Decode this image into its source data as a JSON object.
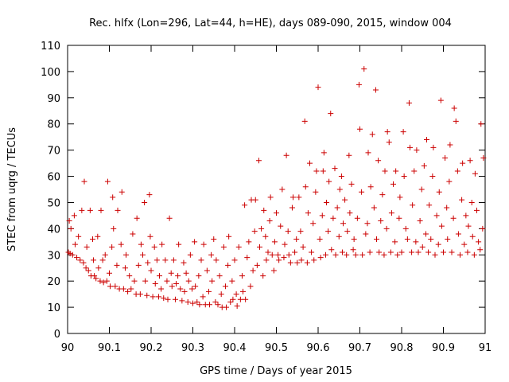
{
  "chart_data": {
    "type": "scatter",
    "title": "Rec. hlfx (Lon=296, Lat=44, h=HE), days 089-090, 2015, window 004",
    "xlabel": "GPS time / Days of year 2015",
    "ylabel": "STEC from uqrg / TECUs",
    "xlim": [
      90,
      91
    ],
    "ylim": [
      0,
      110
    ],
    "x_ticks": [
      90,
      90.1,
      90.2,
      90.3,
      90.4,
      90.5,
      90.6,
      90.7,
      90.8,
      90.9,
      91
    ],
    "x_tick_labels": [
      "90",
      "90.1",
      "90.2",
      "90.3",
      "90.4",
      "90.5",
      "90.6",
      "90.7",
      "90.8",
      "90.9",
      "91"
    ],
    "y_ticks": [
      0,
      10,
      20,
      30,
      40,
      50,
      60,
      70,
      80,
      90,
      100,
      110
    ],
    "y_tick_labels": [
      "0",
      "10",
      "20",
      "30",
      "40",
      "50",
      "60",
      "70",
      "80",
      "90",
      "100",
      "110"
    ],
    "marker": "plus",
    "color": "#cc0000",
    "grid": false,
    "series": [
      {
        "points": [
          [
            90.002,
            31
          ],
          [
            90.004,
            43
          ],
          [
            90.006,
            30.5
          ],
          [
            90.008,
            40
          ],
          [
            90.012,
            30
          ],
          [
            90.016,
            45
          ],
          [
            90.018,
            34
          ],
          [
            90.022,
            29
          ],
          [
            90.026,
            37
          ],
          [
            90.03,
            28
          ],
          [
            90.034,
            47
          ],
          [
            90.038,
            27
          ],
          [
            90.04,
            58
          ],
          [
            90.044,
            25
          ],
          [
            90.046,
            33
          ],
          [
            90.05,
            24
          ],
          [
            90.054,
            47
          ],
          [
            90.056,
            22
          ],
          [
            90.06,
            36
          ],
          [
            90.062,
            28
          ],
          [
            90.064,
            22
          ],
          [
            90.068,
            21
          ],
          [
            90.072,
            37
          ],
          [
            90.074,
            25
          ],
          [
            90.078,
            20
          ],
          [
            90.08,
            47
          ],
          [
            90.084,
            28
          ],
          [
            90.086,
            19.5
          ],
          [
            90.09,
            30
          ],
          [
            90.094,
            20
          ],
          [
            90.096,
            58
          ],
          [
            90.1,
            23
          ],
          [
            90.102,
            18
          ],
          [
            90.106,
            33
          ],
          [
            90.108,
            52
          ],
          [
            90.11,
            40
          ],
          [
            90.114,
            18
          ],
          [
            90.118,
            26
          ],
          [
            90.12,
            47
          ],
          [
            90.124,
            17
          ],
          [
            90.128,
            34
          ],
          [
            90.13,
            54
          ],
          [
            90.134,
            17
          ],
          [
            90.138,
            25
          ],
          [
            90.14,
            30
          ],
          [
            90.144,
            16
          ],
          [
            90.148,
            22
          ],
          [
            90.152,
            17
          ],
          [
            90.156,
            38
          ],
          [
            90.16,
            20
          ],
          [
            90.164,
            15
          ],
          [
            90.166,
            44
          ],
          [
            90.17,
            26
          ],
          [
            90.174,
            15
          ],
          [
            90.176,
            34
          ],
          [
            90.18,
            30
          ],
          [
            90.184,
            50
          ],
          [
            90.186,
            20
          ],
          [
            90.19,
            14.5
          ],
          [
            90.192,
            27
          ],
          [
            90.196,
            53
          ],
          [
            90.198,
            37
          ],
          [
            90.2,
            24
          ],
          [
            90.204,
            14
          ],
          [
            90.208,
            33
          ],
          [
            90.21,
            19
          ],
          [
            90.214,
            28
          ],
          [
            90.218,
            14
          ],
          [
            90.22,
            22
          ],
          [
            90.224,
            17
          ],
          [
            90.226,
            34
          ],
          [
            90.23,
            13.5
          ],
          [
            90.234,
            28
          ],
          [
            90.238,
            20
          ],
          [
            90.24,
            13
          ],
          [
            90.244,
            44
          ],
          [
            90.248,
            23
          ],
          [
            90.25,
            18
          ],
          [
            90.254,
            28
          ],
          [
            90.258,
            13
          ],
          [
            90.26,
            19
          ],
          [
            90.264,
            22
          ],
          [
            90.266,
            34
          ],
          [
            90.27,
            17
          ],
          [
            90.274,
            12.5
          ],
          [
            90.278,
            27
          ],
          [
            90.28,
            16
          ],
          [
            90.284,
            23
          ],
          [
            90.288,
            12
          ],
          [
            90.29,
            20
          ],
          [
            90.294,
            30
          ],
          [
            90.298,
            17
          ],
          [
            90.3,
            11.5
          ],
          [
            90.304,
            35
          ],
          [
            90.306,
            18
          ],
          [
            90.31,
            12
          ],
          [
            90.314,
            22
          ],
          [
            90.316,
            11
          ],
          [
            90.32,
            28
          ],
          [
            90.324,
            14
          ],
          [
            90.326,
            34
          ],
          [
            90.33,
            11
          ],
          [
            90.334,
            24
          ],
          [
            90.338,
            16
          ],
          [
            90.34,
            11
          ],
          [
            90.344,
            30
          ],
          [
            90.346,
            20
          ],
          [
            90.35,
            36
          ],
          [
            90.354,
            12
          ],
          [
            90.356,
            28
          ],
          [
            90.36,
            11
          ],
          [
            90.364,
            22
          ],
          [
            90.368,
            15
          ],
          [
            90.37,
            10
          ],
          [
            90.374,
            33
          ],
          [
            90.378,
            18
          ],
          [
            90.38,
            10
          ],
          [
            90.384,
            26
          ],
          [
            90.386,
            37
          ],
          [
            90.39,
            12
          ],
          [
            90.394,
            20
          ],
          [
            90.396,
            13
          ],
          [
            90.4,
            28
          ],
          [
            90.404,
            15
          ],
          [
            90.406,
            10.5
          ],
          [
            90.41,
            33
          ],
          [
            90.414,
            13
          ],
          [
            90.418,
            22
          ],
          [
            90.42,
            16
          ],
          [
            90.424,
            49
          ],
          [
            90.426,
            13
          ],
          [
            90.43,
            29
          ],
          [
            90.434,
            35
          ],
          [
            90.438,
            18
          ],
          [
            90.44,
            51
          ],
          [
            90.444,
            24
          ],
          [
            90.448,
            39
          ],
          [
            90.45,
            51
          ],
          [
            90.454,
            26
          ],
          [
            90.458,
            66
          ],
          [
            90.46,
            33
          ],
          [
            90.464,
            40
          ],
          [
            90.468,
            22
          ],
          [
            90.47,
            47
          ],
          [
            90.474,
            37
          ],
          [
            90.476,
            28
          ],
          [
            90.48,
            31
          ],
          [
            90.484,
            43
          ],
          [
            90.486,
            52
          ],
          [
            90.49,
            30
          ],
          [
            90.494,
            24
          ],
          [
            90.496,
            35
          ],
          [
            90.5,
            46
          ],
          [
            90.504,
            30
          ],
          [
            90.506,
            28
          ],
          [
            90.51,
            41
          ],
          [
            90.514,
            55
          ],
          [
            90.518,
            29
          ],
          [
            90.52,
            34
          ],
          [
            90.524,
            68
          ],
          [
            90.528,
            39
          ],
          [
            90.53,
            30
          ],
          [
            90.534,
            27
          ],
          [
            90.538,
            48
          ],
          [
            90.54,
            52
          ],
          [
            90.544,
            31
          ],
          [
            90.548,
            36
          ],
          [
            90.55,
            27
          ],
          [
            90.554,
            52
          ],
          [
            90.558,
            39
          ],
          [
            90.56,
            28
          ],
          [
            90.564,
            33
          ],
          [
            90.568,
            81
          ],
          [
            90.57,
            56
          ],
          [
            90.574,
            27
          ],
          [
            90.576,
            46
          ],
          [
            90.58,
            65
          ],
          [
            90.584,
            31
          ],
          [
            90.588,
            42
          ],
          [
            90.59,
            28
          ],
          [
            90.594,
            54
          ],
          [
            90.596,
            62
          ],
          [
            90.6,
            94
          ],
          [
            90.604,
            36
          ],
          [
            90.606,
            29
          ],
          [
            90.61,
            45
          ],
          [
            90.612,
            62
          ],
          [
            90.614,
            69
          ],
          [
            90.618,
            30
          ],
          [
            90.62,
            50
          ],
          [
            90.624,
            39
          ],
          [
            90.626,
            58
          ],
          [
            90.63,
            84
          ],
          [
            90.632,
            32
          ],
          [
            90.636,
            44
          ],
          [
            90.64,
            63
          ],
          [
            90.642,
            30
          ],
          [
            90.646,
            48
          ],
          [
            90.65,
            37
          ],
          [
            90.652,
            55
          ],
          [
            90.656,
            60
          ],
          [
            90.658,
            31
          ],
          [
            90.66,
            42
          ],
          [
            90.664,
            51
          ],
          [
            90.668,
            30
          ],
          [
            90.67,
            39
          ],
          [
            90.674,
            68
          ],
          [
            90.676,
            46
          ],
          [
            90.68,
            57
          ],
          [
            90.684,
            32
          ],
          [
            90.686,
            36
          ],
          [
            90.69,
            30
          ],
          [
            90.694,
            44
          ],
          [
            90.698,
            95
          ],
          [
            90.7,
            78
          ],
          [
            90.704,
            54
          ],
          [
            90.706,
            30
          ],
          [
            90.71,
            101
          ],
          [
            90.714,
            38
          ],
          [
            90.718,
            42
          ],
          [
            90.72,
            69
          ],
          [
            90.724,
            31
          ],
          [
            90.726,
            56
          ],
          [
            90.73,
            76
          ],
          [
            90.734,
            48
          ],
          [
            90.738,
            93
          ],
          [
            90.74,
            36
          ],
          [
            90.744,
            66
          ],
          [
            90.746,
            31
          ],
          [
            90.75,
            43
          ],
          [
            90.754,
            53
          ],
          [
            90.758,
            30
          ],
          [
            90.76,
            62
          ],
          [
            90.764,
            40
          ],
          [
            90.766,
            77
          ],
          [
            90.77,
            73
          ],
          [
            90.774,
            31
          ],
          [
            90.776,
            46
          ],
          [
            90.78,
            57
          ],
          [
            90.784,
            35
          ],
          [
            90.786,
            62
          ],
          [
            90.79,
            30
          ],
          [
            90.794,
            44
          ],
          [
            90.796,
            52
          ],
          [
            90.8,
            31
          ],
          [
            90.804,
            77
          ],
          [
            90.806,
            60
          ],
          [
            90.81,
            40
          ],
          [
            90.814,
            36
          ],
          [
            90.818,
            88
          ],
          [
            90.82,
            71
          ],
          [
            90.824,
            31
          ],
          [
            90.826,
            49
          ],
          [
            90.83,
            62
          ],
          [
            90.834,
            35
          ],
          [
            90.836,
            70
          ],
          [
            90.84,
            31
          ],
          [
            90.844,
            43
          ],
          [
            90.848,
            55
          ],
          [
            90.85,
            33
          ],
          [
            90.854,
            64
          ],
          [
            90.858,
            38
          ],
          [
            90.86,
            74
          ],
          [
            90.864,
            31
          ],
          [
            90.866,
            49
          ],
          [
            90.87,
            36
          ],
          [
            90.874,
            60
          ],
          [
            90.876,
            71
          ],
          [
            90.88,
            30
          ],
          [
            90.884,
            45
          ],
          [
            90.888,
            34
          ],
          [
            90.89,
            54
          ],
          [
            90.894,
            89
          ],
          [
            90.896,
            41
          ],
          [
            90.9,
            31
          ],
          [
            90.904,
            67
          ],
          [
            90.908,
            48
          ],
          [
            90.91,
            36
          ],
          [
            90.914,
            58
          ],
          [
            90.916,
            72
          ],
          [
            90.92,
            31
          ],
          [
            90.924,
            44
          ],
          [
            90.926,
            86
          ],
          [
            90.93,
            81
          ],
          [
            90.934,
            62
          ],
          [
            90.936,
            38
          ],
          [
            90.94,
            30
          ],
          [
            90.944,
            51
          ],
          [
            90.946,
            65
          ],
          [
            90.95,
            34
          ],
          [
            90.954,
            45
          ],
          [
            90.958,
            31
          ],
          [
            90.96,
            41
          ],
          [
            90.964,
            66
          ],
          [
            90.968,
            50
          ],
          [
            90.97,
            37
          ],
          [
            90.974,
            30
          ],
          [
            90.976,
            61
          ],
          [
            90.98,
            47
          ],
          [
            90.984,
            35
          ],
          [
            90.988,
            32
          ],
          [
            90.99,
            80
          ],
          [
            90.994,
            40
          ],
          [
            90.996,
            67
          ]
        ]
      }
    ]
  }
}
